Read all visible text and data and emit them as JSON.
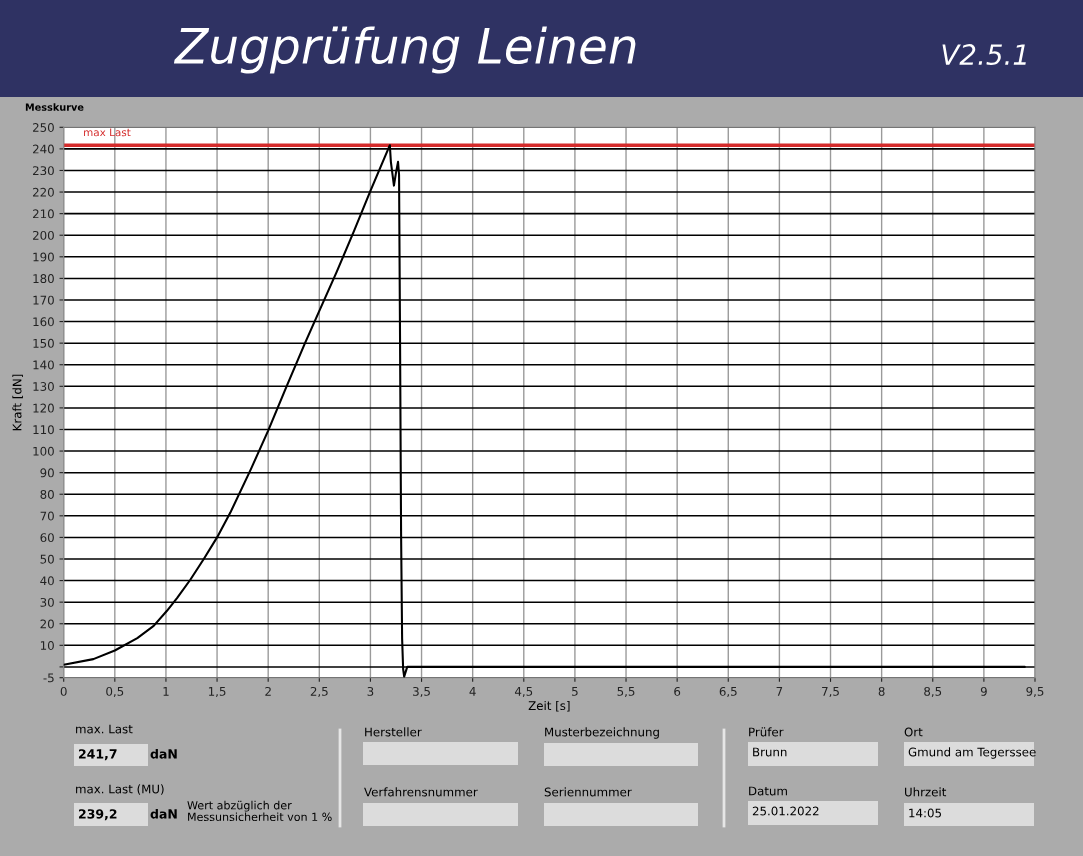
{
  "chart_data": {
    "type": "line",
    "title": "Zugprüfung Leinen",
    "subtitle": "Messkurve",
    "xlabel": "Zeit [s]",
    "ylabel": "Kraft [dN]",
    "series": [
      {
        "color": "#000000",
        "x": [
          0,
          0.29,
          0.5,
          0.72,
          0.88,
          1.01,
          1.11,
          1.24,
          1.37,
          1.5,
          1.63,
          1.83,
          2.0,
          2.18,
          2.36,
          2.51,
          2.67,
          2.84,
          3.0,
          3.19,
          3.2,
          3.23,
          3.25,
          3.27,
          3.28,
          3.29,
          3.3,
          3.31,
          3.32,
          3.33,
          3.36,
          9.4
        ],
        "values": [
          1,
          3.6,
          7.6,
          13.3,
          19,
          26,
          32,
          40.5,
          50,
          60,
          71.5,
          91.5,
          109.5,
          130,
          150,
          166,
          183,
          202,
          220.5,
          241.7,
          234,
          223,
          229,
          234,
          228,
          149,
          61,
          13,
          -1,
          -4.5,
          0,
          0
        ]
      }
    ],
    "xlim": [
      0,
      9.5
    ],
    "xticks": [
      0,
      {
        "value": 0.5,
        "label": "0,5"
      },
      1,
      {
        "value": 1.5,
        "label": "1,5"
      },
      2,
      {
        "value": 2.5,
        "label": "2,5"
      },
      3,
      {
        "value": 3.5,
        "label": "3,5"
      },
      4,
      {
        "value": 4.5,
        "label": "4,5"
      },
      5,
      {
        "value": 5.5,
        "label": "5,5"
      },
      6,
      {
        "value": 6.5,
        "label": "6,5"
      },
      7,
      {
        "value": 7.5,
        "label": "7,5"
      },
      8,
      {
        "value": 8.5,
        "label": "8,5"
      },
      9,
      {
        "value": 9.5,
        "label": "9,5"
      }
    ],
    "ylim": [
      -5,
      250
    ],
    "yticks": [
      250,
      240,
      230,
      220,
      210,
      200,
      190,
      180,
      170,
      160,
      150,
      140,
      130,
      120,
      110,
      100,
      90,
      80,
      70,
      60,
      50,
      40,
      30,
      20,
      10,
      {
        "value": 0,
        "label": null
      },
      -5
    ],
    "grid": true,
    "ref_lines": [
      {
        "axis": "y",
        "value": 241.7,
        "label": "max Last",
        "color": "#d42b2b"
      }
    ],
    "annotations": [
      "V2.5.1",
      "max. Last",
      "241,7",
      "daN",
      "max. Last (MU)",
      "239,2",
      "daN",
      "Wert abzüglich der\nMessunsicherheit von 1 %",
      "Hersteller",
      "Musterbezeichnung",
      "Verfahrensnummer",
      "Seriennummer",
      "Prüfer",
      "Brunn",
      "Ort",
      "Gmund am Tegerssee",
      "Datum",
      "25.01.2022",
      "Uhrzeit",
      "14:05"
    ]
  }
}
